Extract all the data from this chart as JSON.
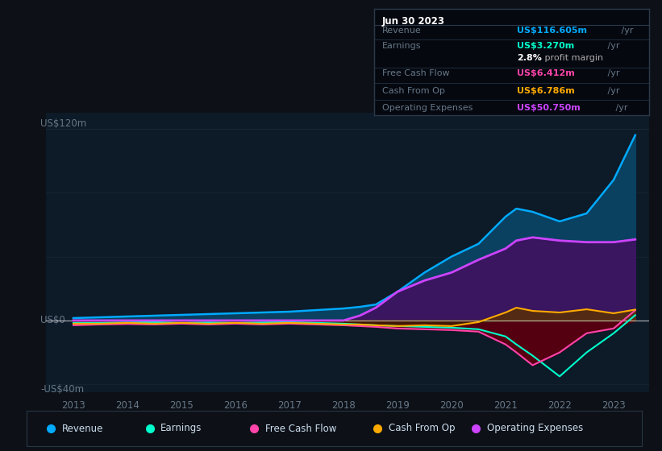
{
  "bg_color": "#0d1117",
  "plot_bg_color": "#0d1a27",
  "ylabel_120": "US$120m",
  "ylabel_0": "US$0",
  "ylabel_neg40": "-US$40m",
  "ylim": [
    -45,
    130
  ],
  "xlim": [
    2012.5,
    2023.65
  ],
  "years": [
    2013.0,
    2013.5,
    2014.0,
    2014.5,
    2015.0,
    2015.5,
    2016.0,
    2016.5,
    2017.0,
    2017.5,
    2018.0,
    2018.3,
    2018.6,
    2019.0,
    2019.5,
    2020.0,
    2020.5,
    2021.0,
    2021.2,
    2021.5,
    2022.0,
    2022.5,
    2023.0,
    2023.4
  ],
  "revenue": [
    1.5,
    2.0,
    2.5,
    3.0,
    3.5,
    4.0,
    4.5,
    5.0,
    5.5,
    6.5,
    7.5,
    8.5,
    10.0,
    18.0,
    30.0,
    40.0,
    48.0,
    65.0,
    70.0,
    68.0,
    62.0,
    67.0,
    88.0,
    116.0
  ],
  "earnings": [
    -1.5,
    -1.5,
    -1.2,
    -1.0,
    -1.5,
    -1.2,
    -1.5,
    -1.2,
    -1.0,
    -1.5,
    -2.0,
    -2.5,
    -3.0,
    -3.5,
    -4.0,
    -4.5,
    -5.5,
    -10.0,
    -15.0,
    -22.0,
    -35.0,
    -20.0,
    -8.0,
    3.3
  ],
  "free_cash_flow": [
    -3.0,
    -2.5,
    -2.2,
    -2.5,
    -2.0,
    -2.5,
    -2.0,
    -2.5,
    -2.0,
    -2.5,
    -3.0,
    -3.5,
    -4.0,
    -5.0,
    -5.5,
    -6.0,
    -7.0,
    -15.0,
    -20.0,
    -28.0,
    -20.0,
    -8.0,
    -5.0,
    6.4
  ],
  "cash_from_op": [
    -2.0,
    -2.0,
    -1.5,
    -2.0,
    -1.5,
    -2.0,
    -1.5,
    -2.0,
    -1.5,
    -2.0,
    -2.5,
    -2.5,
    -3.0,
    -3.5,
    -3.0,
    -3.5,
    -1.0,
    5.0,
    8.0,
    6.0,
    5.0,
    7.0,
    4.5,
    6.8
  ],
  "op_expenses": [
    0.0,
    0.0,
    0.0,
    0.0,
    0.0,
    0.0,
    0.0,
    0.0,
    0.0,
    0.0,
    0.0,
    3.0,
    8.0,
    18.0,
    25.0,
    30.0,
    38.0,
    45.0,
    50.0,
    52.0,
    50.0,
    49.0,
    49.0,
    50.75
  ],
  "revenue_line_color": "#00aaff",
  "earnings_line_color": "#00ffcc",
  "fcf_line_color": "#ff44aa",
  "cash_op_line_color": "#ffaa00",
  "op_exp_line_color": "#cc44ff",
  "revenue_fill_color": "#0a4060",
  "op_exp_fill_color": "#3a1560",
  "fcf_fill_color": "#550011",
  "tooltip_bg": "#05080f",
  "tooltip_border": "#2a3a4a",
  "tooltip_title": "Jun 30 2023",
  "tt_revenue_label": "Revenue",
  "tt_revenue_value": "US$116.605m",
  "tt_revenue_color": "#00aaff",
  "tt_earnings_label": "Earnings",
  "tt_earnings_value": "US$3.270m",
  "tt_earnings_color": "#00ffcc",
  "tt_margin": "2.8%",
  "tt_margin_text": " profit margin",
  "tt_fcf_label": "Free Cash Flow",
  "tt_fcf_value": "US$6.412m",
  "tt_fcf_color": "#ff44aa",
  "tt_cop_label": "Cash From Op",
  "tt_cop_value": "US$6.786m",
  "tt_cop_color": "#ffaa00",
  "tt_opex_label": "Operating Expenses",
  "tt_opex_value": "US$50.750m",
  "tt_opex_color": "#cc44ff",
  "label_color": "#667788",
  "axis_color": "#667788",
  "legend_entries": [
    {
      "label": "Revenue",
      "color": "#00aaff"
    },
    {
      "label": "Earnings",
      "color": "#00ffcc"
    },
    {
      "label": "Free Cash Flow",
      "color": "#ff44aa"
    },
    {
      "label": "Cash From Op",
      "color": "#ffaa00"
    },
    {
      "label": "Operating Expenses",
      "color": "#cc44ff"
    }
  ]
}
